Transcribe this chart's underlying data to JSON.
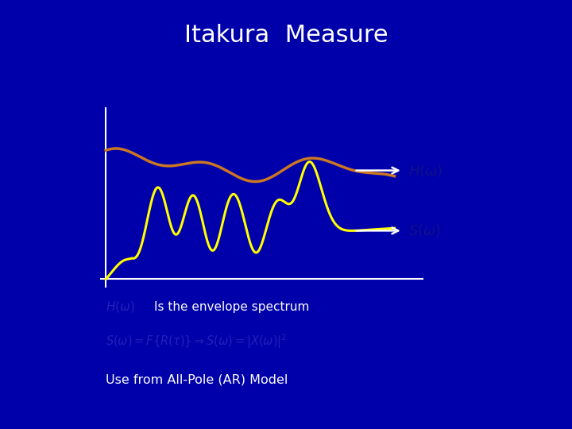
{
  "title": "Itakura  Measure",
  "title_color": "#ffffff",
  "title_fontsize": 22,
  "background_color": "#0000aa",
  "plot_bg_color": "#0000bb",
  "text1_main": "Is the envelope spectrum",
  "text3": "Use from All-Pole (AR) Model",
  "orange_color": "#cc7722",
  "yellow_color": "#ffff00",
  "axis_color": "#ffffff",
  "arrow_color": "#ffffff",
  "text_color": "#ffffff",
  "italic_color": "#3333cc"
}
